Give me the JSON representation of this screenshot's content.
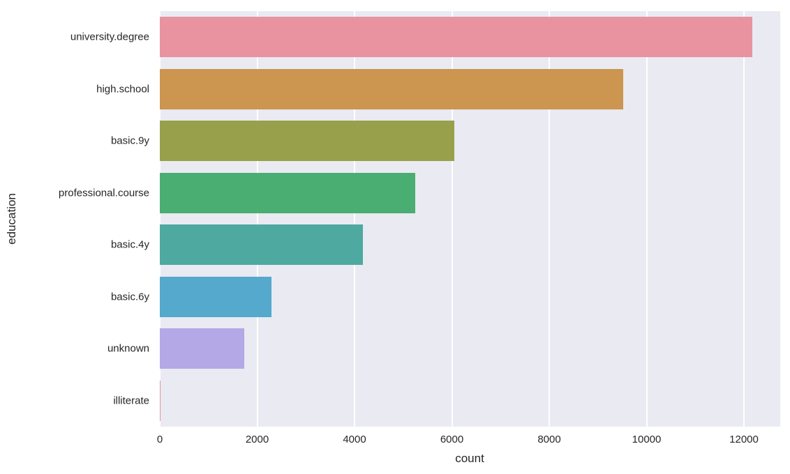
{
  "chart_data": {
    "type": "bar",
    "orientation": "horizontal",
    "title": "",
    "xlabel": "count",
    "ylabel": "education",
    "categories": [
      "university.degree",
      "high.school",
      "basic.9y",
      "professional.course",
      "basic.4y",
      "basic.6y",
      "unknown",
      "illiterate"
    ],
    "values": [
      12168,
      9515,
      6045,
      5243,
      4176,
      2292,
      1731,
      18
    ],
    "colors": [
      "#e8939f",
      "#cc9550",
      "#98a04b",
      "#4aad72",
      "#4ea9a0",
      "#55a9cc",
      "#b4a8e6",
      "#e8939f"
    ],
    "xlim": [
      0,
      12760
    ],
    "xticks": [
      0,
      2000,
      4000,
      6000,
      8000,
      10000,
      12000
    ],
    "xtick_labels": [
      "0",
      "2000",
      "4000",
      "6000",
      "8000",
      "10000",
      "12000"
    ],
    "grid": true,
    "legend": null,
    "style": "seaborn darkgrid"
  }
}
